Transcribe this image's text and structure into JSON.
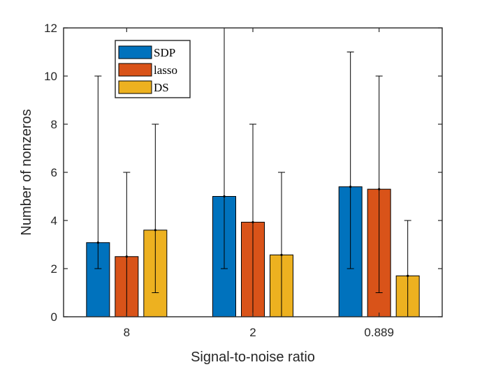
{
  "chart_data": {
    "type": "bar",
    "title": "",
    "xlabel": "Signal-to-noise ratio",
    "ylabel": "Number of nonzeros",
    "categories": [
      "8",
      "2",
      "0.889"
    ],
    "ylim": [
      0,
      12
    ],
    "yticks": [
      "0",
      "2",
      "4",
      "6",
      "8",
      "10",
      "12"
    ],
    "legend_position": "top-left",
    "series": [
      {
        "name": "SDP",
        "color": "#0072bd",
        "values": [
          3.08,
          5.0,
          5.4
        ],
        "err_low": [
          2,
          2,
          2
        ],
        "err_high": [
          10,
          12,
          11
        ]
      },
      {
        "name": "lasso",
        "color": "#d95319",
        "values": [
          2.5,
          3.93,
          5.3
        ],
        "err_low": [
          0,
          0,
          1
        ],
        "err_high": [
          6,
          8,
          10
        ]
      },
      {
        "name": "DS",
        "color": "#edb120",
        "values": [
          3.6,
          2.57,
          1.7
        ],
        "err_low": [
          1,
          0,
          0
        ],
        "err_high": [
          8,
          6,
          4
        ]
      }
    ]
  }
}
